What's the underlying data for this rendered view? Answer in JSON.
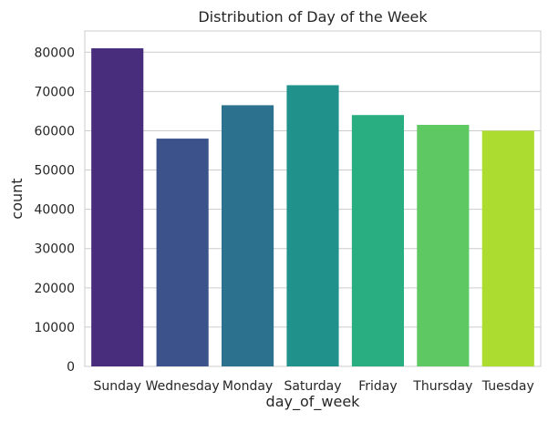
{
  "chart_data": {
    "type": "bar",
    "title": "Distribution of Day of the Week",
    "xlabel": "day_of_week",
    "ylabel": "count",
    "categories": [
      "Sunday",
      "Wednesday",
      "Monday",
      "Saturday",
      "Friday",
      "Thursday",
      "Tuesday"
    ],
    "values": [
      81000,
      58000,
      66500,
      71600,
      64000,
      61500,
      60000
    ],
    "colors": [
      "#472d7b",
      "#3b528b",
      "#2c728e",
      "#21918c",
      "#28ae80",
      "#5ec962",
      "#addc30"
    ],
    "yticks": [
      0,
      10000,
      20000,
      30000,
      40000,
      50000,
      60000,
      70000,
      80000
    ],
    "ytick_labels": [
      "0",
      "10000",
      "20000",
      "30000",
      "40000",
      "50000",
      "60000",
      "70000",
      "80000"
    ],
    "ylim": [
      0,
      85400
    ],
    "grid": "horizontal",
    "legend": "none"
  }
}
